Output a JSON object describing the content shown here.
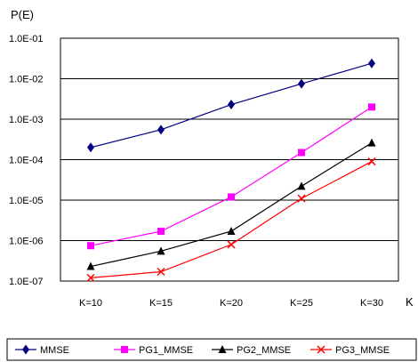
{
  "chart_data": {
    "type": "line",
    "title": "",
    "ylabel": "P(E)",
    "xlabel": "K",
    "y_scale": "log",
    "ylim": [
      1e-07,
      0.1
    ],
    "categories": [
      "K=10",
      "K=15",
      "K=20",
      "K=25",
      "K=30"
    ],
    "y_tick_labels": [
      "1.0E-01",
      "1.0E-02",
      "1.0E-03",
      "1.0E-04",
      "1.0E-05",
      "1.0E-06",
      "1.0E-07"
    ],
    "grid": "horizontal",
    "legend_position": "bottom",
    "series": [
      {
        "name": "MMSE",
        "color": "#000080",
        "marker": "diamond",
        "values": [
          0.0002,
          0.00055,
          0.0023,
          0.0075,
          0.024
        ]
      },
      {
        "name": "PG1_MMSE",
        "color": "#FF00FF",
        "marker": "square",
        "values": [
          7.5e-07,
          1.7e-06,
          1.2e-05,
          0.00015,
          0.002
        ]
      },
      {
        "name": "PG2_MMSE",
        "color": "#000000",
        "marker": "triangle",
        "values": [
          2.3e-07,
          5.5e-07,
          1.7e-06,
          2.2e-05,
          0.00026
        ]
      },
      {
        "name": "PG3_MMSE",
        "color": "#FF0000",
        "marker": "x",
        "values": [
          1.2e-07,
          1.7e-07,
          8e-07,
          1.1e-05,
          9e-05
        ]
      }
    ]
  }
}
